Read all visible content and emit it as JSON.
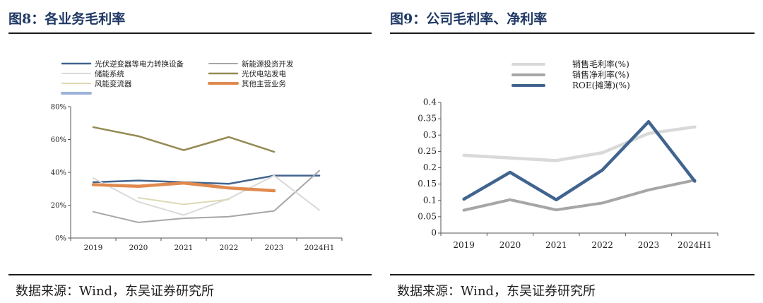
{
  "left": {
    "title": "图8：各业务毛利率",
    "source": "数据来源：Wind，东吴证券研究所"
  },
  "right": {
    "title": "图9：公司毛利率、净利率",
    "source": "数据来源：Wind，东吴证券研究所"
  },
  "chart_data": [
    {
      "type": "line",
      "categories": [
        "2019",
        "2020",
        "2021",
        "2022",
        "2023",
        "2024H1"
      ],
      "ylim": [
        0,
        0.8
      ],
      "y_tick_labels": [
        "0%",
        "20%",
        "40%",
        "60%",
        "80%"
      ],
      "grid": false,
      "legend_position": "top",
      "series": [
        {
          "name": "光伏逆变器等电力转换设备",
          "color": "#41648f",
          "width": 2.5,
          "values": [
            0.34,
            0.35,
            0.34,
            0.33,
            0.38,
            0.38
          ]
        },
        {
          "name": "新能源投资开发",
          "color": "#a6a6a6",
          "width": 2,
          "values": [
            0.16,
            0.095,
            0.12,
            0.13,
            0.165,
            0.41
          ]
        },
        {
          "name": "储能系统",
          "color": "#d9d9d9",
          "width": 2,
          "values": [
            0.365,
            0.22,
            0.14,
            0.24,
            0.38,
            0.17
          ]
        },
        {
          "name": "光伏电站发电",
          "color": "#948a54",
          "width": 2.5,
          "values": [
            0.675,
            0.62,
            0.535,
            0.615,
            0.525,
            null
          ]
        },
        {
          "name": "风能变流器",
          "color": "#ddd9b4",
          "width": 2,
          "values": [
            null,
            0.245,
            0.205,
            0.235,
            null,
            null
          ]
        },
        {
          "name": "其他主营业务",
          "color": "#e08a4f",
          "width": 4.5,
          "values": [
            0.325,
            0.315,
            0.335,
            0.305,
            0.288,
            null
          ]
        },
        {
          "name": "",
          "color": "#9db3d9",
          "width": 4,
          "values": [
            null,
            null,
            null,
            null,
            null,
            null
          ]
        }
      ]
    },
    {
      "type": "line",
      "categories": [
        "2019",
        "2020",
        "2021",
        "2022",
        "2023",
        "2024H1"
      ],
      "ylim": [
        0,
        0.4
      ],
      "y_tick_labels": [
        "0",
        "0.05",
        "0.1",
        "0.15",
        "0.2",
        "0.25",
        "0.3",
        "0.35",
        "0.4"
      ],
      "grid": false,
      "legend_position": "top",
      "series": [
        {
          "name": "销售毛利率(%)",
          "color": "#d9d9d9",
          "width": 4.5,
          "values": [
            0.238,
            0.23,
            0.222,
            0.246,
            0.305,
            0.325
          ]
        },
        {
          "name": "销售净利率(%)",
          "color": "#a6a6a6",
          "width": 4,
          "values": [
            0.07,
            0.102,
            0.071,
            0.092,
            0.132,
            0.162
          ]
        },
        {
          "name": "ROE(摊薄)(%)",
          "color": "#41648f",
          "width": 4.5,
          "values": [
            0.104,
            0.186,
            0.102,
            0.193,
            0.341,
            0.159
          ]
        }
      ]
    }
  ]
}
